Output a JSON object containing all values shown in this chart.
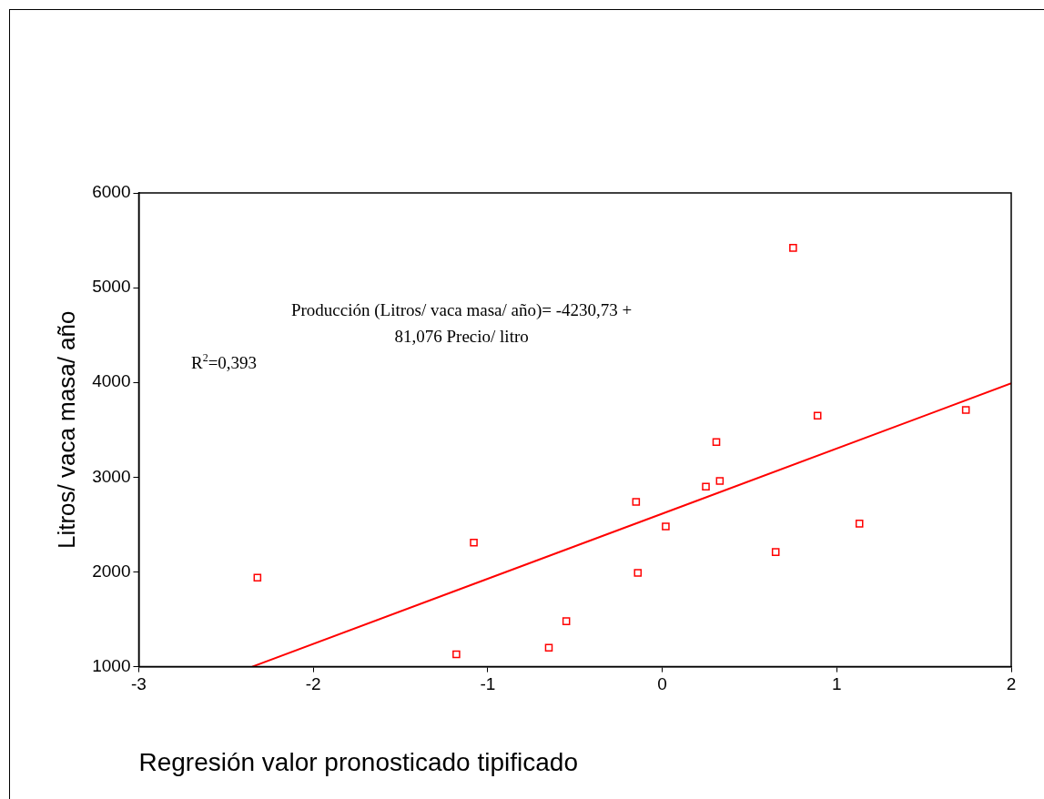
{
  "chart_data": {
    "type": "scatter",
    "xlabel": "Regresión valor pronosticado tipificado",
    "ylabel": "Litros/ vaca masa/ año",
    "xlim": [
      -3,
      2
    ],
    "xticks": [
      -3,
      -2,
      -1,
      0,
      1,
      2
    ],
    "ylim": [
      1000,
      6000
    ],
    "yticks": [
      1000,
      2000,
      3000,
      4000,
      5000,
      6000
    ],
    "grid": false,
    "legend": false,
    "annotations": [
      "Producción (Litros/ vaca masa/ año)= -4230,73 +",
      "81,076 Precio/ litro",
      "R$^{2}$=0,393"
    ],
    "series": [
      {
        "type": "scatter",
        "color": "#ff0000",
        "marker": "square",
        "x": [
          -2.32,
          -1.18,
          -1.08,
          -0.65,
          -0.55,
          -0.15,
          -0.14,
          0.02,
          0.25,
          0.31,
          0.33,
          0.65,
          0.75,
          0.89,
          1.13,
          1.74
        ],
        "values": [
          1940,
          1130,
          2310,
          1200,
          1480,
          2740,
          1990,
          2480,
          2900,
          3370,
          2960,
          2210,
          5420,
          3650,
          2510,
          3710
        ]
      },
      {
        "type": "line",
        "color": "#ff0000",
        "marker": "none",
        "x": [
          -2.35,
          2
        ],
        "values": [
          1000,
          3990
        ]
      }
    ]
  }
}
